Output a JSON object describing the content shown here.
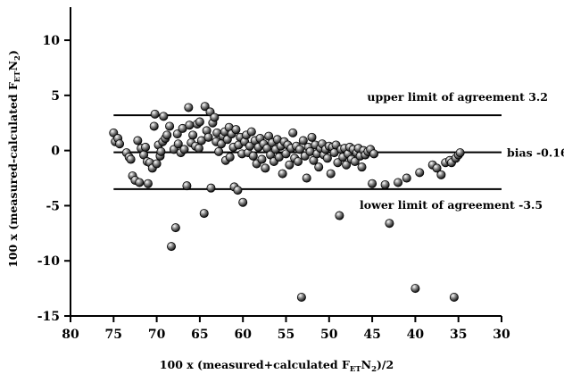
{
  "chart_data": {
    "type": "scatter",
    "xlabel": "100 x (measured+calculated F_ET N_2)/2",
    "xlabel_parts": {
      "main": "100 x (measured+calculated F",
      "sub1": "ET",
      "mid": "N",
      "sub2": "2",
      "end": ")/2"
    },
    "ylabel": "100 x (measured-calculated F_ET N_2)",
    "ylabel_parts": {
      "main": "100 x (measured-calculated F",
      "sub1": "ET",
      "mid": "N",
      "sub2": "2",
      "end": ")"
    },
    "xlim": [
      80,
      30
    ],
    "ylim": [
      -15,
      13
    ],
    "xticks": [
      80,
      75,
      70,
      65,
      60,
      55,
      50,
      45,
      40,
      35,
      30
    ],
    "yticks": [
      10,
      5,
      0,
      -5,
      -10,
      -15
    ],
    "grid": false,
    "reference_lines": [
      {
        "label": "upper limit of agreement 3.2",
        "y": 3.2,
        "x_range": [
          75,
          35
        ]
      },
      {
        "label": "bias -0.16",
        "y": -0.16,
        "x_range": [
          75,
          35
        ]
      },
      {
        "label": "lower limit of agreement -3.5",
        "y": -3.5,
        "x_range": [
          75,
          35
        ]
      }
    ],
    "points": [
      [
        75,
        1.6
      ],
      [
        74.8,
        0.8
      ],
      [
        74.5,
        1.1
      ],
      [
        74.3,
        0.6
      ],
      [
        73.5,
        -0.2
      ],
      [
        73.2,
        -0.6
      ],
      [
        73,
        -0.8
      ],
      [
        72.8,
        -2.3
      ],
      [
        72.5,
        -2.7
      ],
      [
        72.2,
        0.9
      ],
      [
        72,
        -2.9
      ],
      [
        71.8,
        0.2
      ],
      [
        71.5,
        -0.4
      ],
      [
        71.3,
        0.3
      ],
      [
        71.1,
        -1.0
      ],
      [
        71,
        -3.0
      ],
      [
        70.8,
        -1.1
      ],
      [
        70.5,
        -1.6
      ],
      [
        70.3,
        2.2
      ],
      [
        70.2,
        3.3
      ],
      [
        70,
        -1.2
      ],
      [
        69.8,
        0.5
      ],
      [
        69.6,
        -0.5
      ],
      [
        69.5,
        -0.1
      ],
      [
        69.3,
        0.8
      ],
      [
        69.2,
        3.1
      ],
      [
        69,
        1.1
      ],
      [
        68.8,
        1.4
      ],
      [
        68.5,
        2.2
      ],
      [
        68.3,
        -8.7
      ],
      [
        68,
        0.1
      ],
      [
        67.8,
        -7.0
      ],
      [
        67.6,
        1.5
      ],
      [
        67.5,
        0.6
      ],
      [
        67.2,
        -0.2
      ],
      [
        67,
        2.0
      ],
      [
        66.8,
        0.1
      ],
      [
        66.5,
        -3.2
      ],
      [
        66.3,
        3.9
      ],
      [
        66.2,
        2.3
      ],
      [
        66,
        0.7
      ],
      [
        65.8,
        1.4
      ],
      [
        65.5,
        0.4
      ],
      [
        65.3,
        2.4
      ],
      [
        65.1,
        0.2
      ],
      [
        65,
        2.6
      ],
      [
        64.8,
        0.9
      ],
      [
        64.5,
        -5.7
      ],
      [
        64.4,
        4.0
      ],
      [
        64.2,
        1.8
      ],
      [
        64,
        1.2
      ],
      [
        63.8,
        3.5
      ],
      [
        63.7,
        -3.4
      ],
      [
        63.5,
        2.5
      ],
      [
        63.3,
        3.0
      ],
      [
        63.1,
        0.8
      ],
      [
        63,
        1.6
      ],
      [
        62.8,
        -0.1
      ],
      [
        62.5,
        0.6
      ],
      [
        62.3,
        1.3
      ],
      [
        62.1,
        1.7
      ],
      [
        62,
        -0.9
      ],
      [
        61.8,
        1.0
      ],
      [
        61.6,
        2.1
      ],
      [
        61.5,
        -0.6
      ],
      [
        61.3,
        1.5
      ],
      [
        61.1,
        0.3
      ],
      [
        61,
        -3.3
      ],
      [
        60.8,
        1.9
      ],
      [
        60.6,
        -3.6
      ],
      [
        60.5,
        0.5
      ],
      [
        60.3,
        1.2
      ],
      [
        60.1,
        -0.3
      ],
      [
        60,
        -4.7
      ],
      [
        59.8,
        0.8
      ],
      [
        59.6,
        1.4
      ],
      [
        59.4,
        -0.2
      ],
      [
        59.2,
        0.4
      ],
      [
        59,
        1.7
      ],
      [
        58.8,
        -0.5
      ],
      [
        58.6,
        0.9
      ],
      [
        58.4,
        -1.2
      ],
      [
        58.2,
        0.3
      ],
      [
        58,
        1.1
      ],
      [
        57.8,
        -0.8
      ],
      [
        57.6,
        0.6
      ],
      [
        57.4,
        -1.6
      ],
      [
        57.2,
        0.2
      ],
      [
        57,
        1.3
      ],
      [
        56.8,
        -0.4
      ],
      [
        56.6,
        0.7
      ],
      [
        56.4,
        -1.0
      ],
      [
        56.2,
        0.1
      ],
      [
        56,
        1.0
      ],
      [
        55.8,
        -0.6
      ],
      [
        55.6,
        0.4
      ],
      [
        55.4,
        -2.1
      ],
      [
        55.2,
        0.8
      ],
      [
        55,
        -0.3
      ],
      [
        54.8,
        0.5
      ],
      [
        54.6,
        -1.3
      ],
      [
        54.4,
        0.2
      ],
      [
        54.2,
        1.6
      ],
      [
        54,
        -0.7
      ],
      [
        53.8,
        0.4
      ],
      [
        53.6,
        -1.0
      ],
      [
        53.4,
        0.1
      ],
      [
        53.2,
        -13.3
      ],
      [
        53,
        0.9
      ],
      [
        52.8,
        -0.5
      ],
      [
        52.6,
        -2.5
      ],
      [
        52.4,
        0.3
      ],
      [
        52.2,
        -0.1
      ],
      [
        52,
        1.2
      ],
      [
        51.8,
        -0.9
      ],
      [
        51.6,
        0.5
      ],
      [
        51.4,
        -0.3
      ],
      [
        51.2,
        -1.5
      ],
      [
        51,
        0.2
      ],
      [
        50.8,
        0.6
      ],
      [
        50.6,
        -0.4
      ],
      [
        50.4,
        0.1
      ],
      [
        50.2,
        -0.7
      ],
      [
        50,
        0.4
      ],
      [
        49.8,
        -2.1
      ],
      [
        49.6,
        0.3
      ],
      [
        49.4,
        -0.2
      ],
      [
        49.2,
        0.5
      ],
      [
        49,
        -1.1
      ],
      [
        48.8,
        -5.9
      ],
      [
        48.6,
        0.1
      ],
      [
        48.4,
        -0.6
      ],
      [
        48.2,
        0.2
      ],
      [
        48,
        -1.3
      ],
      [
        47.8,
        -0.3
      ],
      [
        47.6,
        0.3
      ],
      [
        47.4,
        -0.8
      ],
      [
        47.2,
        0.1
      ],
      [
        47,
        -1.0
      ],
      [
        46.8,
        -0.2
      ],
      [
        46.6,
        0.2
      ],
      [
        46.4,
        -0.5
      ],
      [
        46.2,
        -1.5
      ],
      [
        46,
        0.0
      ],
      [
        45.8,
        -0.4
      ],
      [
        45.5,
        -0.1
      ],
      [
        45.2,
        0.1
      ],
      [
        45,
        -3.0
      ],
      [
        44.8,
        -0.3
      ],
      [
        43.5,
        -3.1
      ],
      [
        43,
        -6.6
      ],
      [
        42,
        -2.9
      ],
      [
        41,
        -2.5
      ],
      [
        40,
        -12.5
      ],
      [
        39.5,
        -2.0
      ],
      [
        38,
        -1.3
      ],
      [
        37.5,
        -1.6
      ],
      [
        37,
        -2.2
      ],
      [
        36.5,
        -1.1
      ],
      [
        36,
        -0.9
      ],
      [
        35.8,
        -1.1
      ],
      [
        35.5,
        -13.3
      ],
      [
        35.3,
        -0.7
      ],
      [
        35,
        -0.4
      ],
      [
        34.8,
        -0.2
      ]
    ]
  }
}
